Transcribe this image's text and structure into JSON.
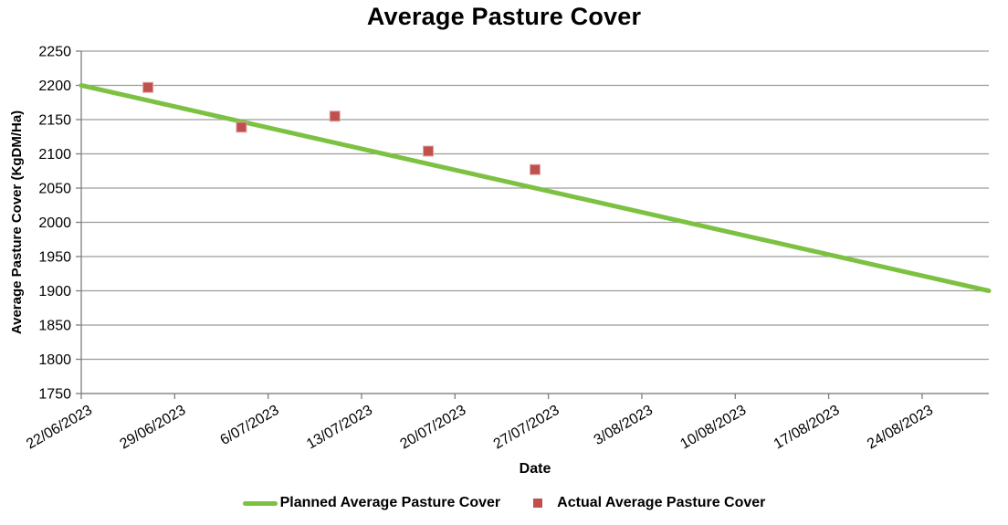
{
  "chart_data": {
    "type": "line",
    "title": "Average Pasture Cover",
    "xlabel": "Date",
    "ylabel": "Average Pasture Cover (KgDM/Ha)",
    "ylim": [
      1750,
      2250
    ],
    "ytick_step": 50,
    "yticks": [
      1750,
      1800,
      1850,
      1900,
      1950,
      2000,
      2050,
      2100,
      2150,
      2200,
      2250
    ],
    "x_tick_labels": [
      "22/06/2023",
      "29/06/2023",
      "6/07/2023",
      "13/07/2023",
      "20/07/2023",
      "27/07/2023",
      "3/08/2023",
      "10/08/2023",
      "17/08/2023",
      "24/08/2023"
    ],
    "x_tick_interval_days": 7,
    "x_domain_days": [
      0,
      68
    ],
    "grid": "horizontal-only",
    "legend_position": "bottom-center",
    "series": [
      {
        "name": "Planned Average Pasture Cover",
        "type": "line",
        "color": "#7DC142",
        "points": [
          {
            "date": "22/06/2023",
            "day": 0,
            "value": 2200
          },
          {
            "date": "29/08/2023",
            "day": 68,
            "value": 1900
          }
        ]
      },
      {
        "name": "Actual Average Pasture Cover",
        "type": "scatter",
        "marker": "square",
        "color": "#C0504D",
        "marker_border": "#DFA7A5",
        "points": [
          {
            "date": "27/06/2023",
            "day": 5,
            "value": 2197
          },
          {
            "date": "4/07/2023",
            "day": 12,
            "value": 2139
          },
          {
            "date": "11/07/2023",
            "day": 19,
            "value": 2155
          },
          {
            "date": "18/07/2023",
            "day": 26,
            "value": 2104
          },
          {
            "date": "26/07/2023",
            "day": 34,
            "value": 2077
          }
        ]
      }
    ],
    "colors": {
      "background": "#FFFFFF",
      "gridline": "#9C9C9C",
      "axis": "#7F7F7F",
      "text": "#000000"
    }
  }
}
